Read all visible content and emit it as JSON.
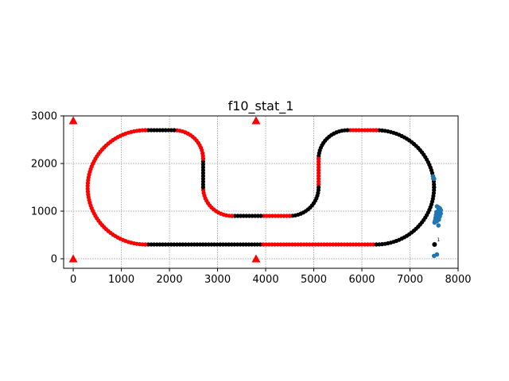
{
  "chart_data": {
    "type": "scatter",
    "title": "f10_stat_1",
    "xlabel": "",
    "ylabel": "",
    "xlim": [
      -200,
      8000
    ],
    "ylim": [
      -200,
      3000
    ],
    "xticks": [
      0,
      1000,
      2000,
      3000,
      4000,
      5000,
      6000,
      7000,
      8000
    ],
    "yticks": [
      0,
      1000,
      2000,
      3000
    ],
    "grid": true,
    "colors": {
      "red": "#ff0000",
      "black": "#000000",
      "blue": "#1f77b4",
      "marker": "#ff0000"
    },
    "track_segments": [
      {
        "color": "black",
        "kind": "line",
        "from": [
          1500,
          300
        ],
        "to": [
          3950,
          300
        ]
      },
      {
        "color": "red",
        "kind": "line",
        "from": [
          3950,
          300
        ],
        "to": [
          6300,
          300
        ]
      },
      {
        "color": "black",
        "kind": "arc",
        "cx": 6300,
        "cy": 1500,
        "r": 1200,
        "start": 270,
        "end": 360
      },
      {
        "color": "black",
        "kind": "arc",
        "cx": 6300,
        "cy": 1500,
        "r": 1200,
        "start": 0,
        "end": 90
      },
      {
        "color": "red",
        "kind": "line",
        "from": [
          6300,
          2700
        ],
        "to": [
          5700,
          2700
        ]
      },
      {
        "color": "black",
        "kind": "arc",
        "cx": 5700,
        "cy": 2100,
        "r": 600,
        "start": 90,
        "end": 180
      },
      {
        "color": "red",
        "kind": "line",
        "from": [
          5100,
          2100
        ],
        "to": [
          5100,
          1500
        ]
      },
      {
        "color": "black",
        "kind": "arc",
        "cx": 4500,
        "cy": 1500,
        "r": 600,
        "start": 0,
        "end": -90
      },
      {
        "color": "red",
        "kind": "line",
        "from": [
          4500,
          900
        ],
        "to": [
          3900,
          900
        ]
      },
      {
        "color": "black",
        "kind": "line",
        "from": [
          3900,
          900
        ],
        "to": [
          3300,
          900
        ]
      },
      {
        "color": "red",
        "kind": "arc",
        "cx": 3300,
        "cy": 1500,
        "r": 600,
        "start": 270,
        "end": 180
      },
      {
        "color": "black",
        "kind": "line",
        "from": [
          2700,
          1500
        ],
        "to": [
          2700,
          2100
        ]
      },
      {
        "color": "red",
        "kind": "arc",
        "cx": 2100,
        "cy": 2100,
        "r": 600,
        "start": 0,
        "end": 90
      },
      {
        "color": "black",
        "kind": "line",
        "from": [
          2100,
          2700
        ],
        "to": [
          1500,
          2700
        ]
      },
      {
        "color": "red",
        "kind": "arc",
        "cx": 1500,
        "cy": 1500,
        "r": 1200,
        "start": 90,
        "end": 270
      }
    ],
    "markers": [
      {
        "x": 0,
        "y": 2900
      },
      {
        "x": 3800,
        "y": 2900
      },
      {
        "x": 0,
        "y": 0
      },
      {
        "x": 3800,
        "y": 0
      }
    ],
    "blue_points": [
      [
        7480,
        1730
      ],
      [
        7500,
        1680
      ],
      [
        7560,
        1100
      ],
      [
        7590,
        1080
      ],
      [
        7620,
        1060
      ],
      [
        7600,
        1040
      ],
      [
        7640,
        1020
      ],
      [
        7580,
        1000
      ],
      [
        7620,
        990
      ],
      [
        7550,
        980
      ],
      [
        7600,
        960
      ],
      [
        7640,
        950
      ],
      [
        7570,
        940
      ],
      [
        7610,
        930
      ],
      [
        7540,
        920
      ],
      [
        7590,
        905
      ],
      [
        7620,
        890
      ],
      [
        7560,
        880
      ],
      [
        7600,
        870
      ],
      [
        7530,
        860
      ],
      [
        7580,
        850
      ],
      [
        7550,
        830
      ],
      [
        7600,
        820
      ],
      [
        7520,
        800
      ],
      [
        7560,
        790
      ],
      [
        7510,
        760
      ],
      [
        7590,
        700
      ],
      [
        7500,
        60
      ],
      [
        7560,
        90
      ]
    ],
    "annotated_point": {
      "x": 7510,
      "y": 300,
      "label": "1"
    }
  }
}
